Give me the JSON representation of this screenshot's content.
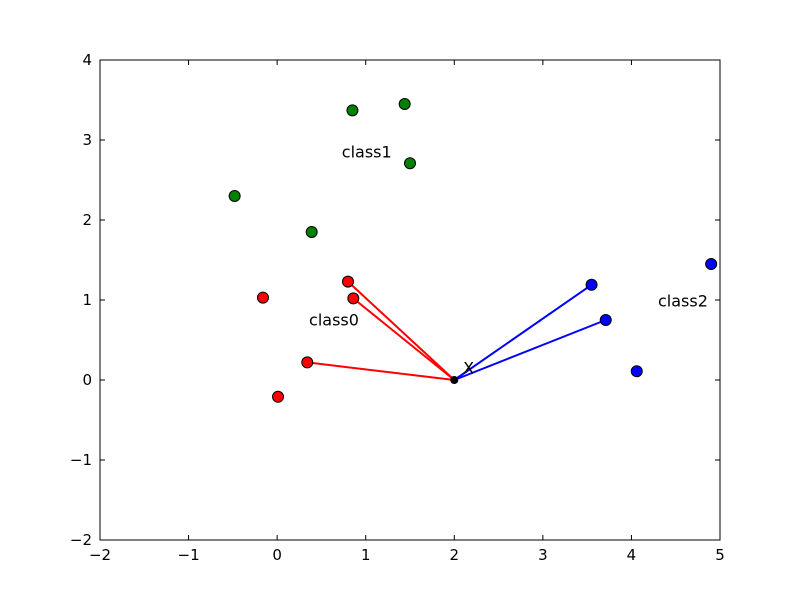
{
  "chart_data": {
    "type": "scatter",
    "title": "",
    "xlabel": "",
    "ylabel": "",
    "xlim": [
      -2,
      5
    ],
    "ylim": [
      -2,
      4
    ],
    "xticks": [
      -2,
      -1,
      0,
      1,
      2,
      3,
      4,
      5
    ],
    "yticks": [
      -2,
      -1,
      0,
      1,
      2,
      3,
      4
    ],
    "xtick_labels": [
      "−2",
      "−1",
      "0",
      "1",
      "2",
      "3",
      "4",
      "5"
    ],
    "ytick_labels": [
      "−2",
      "−1",
      "0",
      "1",
      "2",
      "3",
      "4"
    ],
    "grid": false,
    "series": [
      {
        "color": "#ff0000",
        "points": [
          {
            "x": -0.16,
            "y": 1.03
          },
          {
            "x": 0.01,
            "y": -0.21
          },
          {
            "x": 0.34,
            "y": 0.22
          },
          {
            "x": 0.8,
            "y": 1.23
          },
          {
            "x": 0.86,
            "y": 1.02
          }
        ]
      },
      {
        "color": "#008000",
        "points": [
          {
            "x": -0.48,
            "y": 2.3
          },
          {
            "x": 0.39,
            "y": 1.85
          },
          {
            "x": 0.85,
            "y": 3.37
          },
          {
            "x": 1.44,
            "y": 3.45
          },
          {
            "x": 1.5,
            "y": 2.71
          }
        ]
      },
      {
        "color": "#0000ff",
        "points": [
          {
            "x": 3.55,
            "y": 1.19
          },
          {
            "x": 3.71,
            "y": 0.75
          },
          {
            "x": 4.06,
            "y": 0.11
          },
          {
            "x": 4.9,
            "y": 1.45
          }
        ]
      }
    ],
    "query_point": {
      "x": 2.0,
      "y": 0.0,
      "color": "#000000"
    },
    "neighbor_lines": [
      {
        "color": "#ff0000",
        "to": {
          "x": 0.8,
          "y": 1.23
        }
      },
      {
        "color": "#ff0000",
        "to": {
          "x": 0.86,
          "y": 1.02
        }
      },
      {
        "color": "#ff0000",
        "to": {
          "x": 0.34,
          "y": 0.22
        }
      },
      {
        "color": "#0000ff",
        "to": {
          "x": 3.55,
          "y": 1.19
        }
      },
      {
        "color": "#0000ff",
        "to": {
          "x": 3.71,
          "y": 0.75
        }
      }
    ],
    "annotations": [
      {
        "text": "class0",
        "x": 0.36,
        "y": 0.68
      },
      {
        "text": "class1",
        "x": 0.73,
        "y": 2.78
      },
      {
        "text": "class2",
        "x": 4.3,
        "y": 0.92
      },
      {
        "text": "X",
        "x": 2.1,
        "y": 0.08
      }
    ]
  }
}
